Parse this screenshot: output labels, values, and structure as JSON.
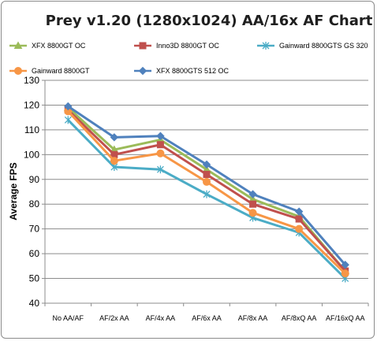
{
  "chart_data": {
    "type": "line",
    "title": "Prey v1.20 (1280x1024) AA/16x AF Chart",
    "ylabel": "Average FPS",
    "xlabel": "",
    "ylim": [
      40,
      130
    ],
    "y_ticks": [
      40,
      50,
      60,
      70,
      80,
      90,
      100,
      110,
      120,
      130
    ],
    "grid": "horizontal",
    "legend_position": "top",
    "categories": [
      "No AA/AF",
      "AF/2x AA",
      "AF/4x AA",
      "AF/6x AA",
      "AF/8x AA",
      "AF/8xQ AA",
      "AF/16xQ AA"
    ],
    "series": [
      {
        "name": "XFX 8800GT OC",
        "color": "#9bbb59",
        "marker": "triangle",
        "values": [
          119,
          102,
          106,
          94,
          82,
          75,
          53
        ]
      },
      {
        "name": "Inno3D 8800GT OC",
        "color": "#c0504d",
        "marker": "square",
        "values": [
          118,
          100,
          104,
          92,
          80,
          74,
          53
        ]
      },
      {
        "name": "Gainward 8800GTS GS 320",
        "color": "#4bacc6",
        "marker": "star",
        "values": [
          114,
          95,
          94,
          84,
          74.5,
          68.5,
          50
        ]
      },
      {
        "name": "Gainward 8800GT",
        "color": "#f79646",
        "marker": "circle",
        "values": [
          117.5,
          97.5,
          100.5,
          89,
          76.5,
          70,
          52
        ]
      },
      {
        "name": "XFX 8800GTS 512 OC",
        "color": "#4f81bd",
        "marker": "diamond",
        "values": [
          119.5,
          107,
          107.5,
          96,
          84,
          77,
          55.5
        ]
      }
    ]
  }
}
